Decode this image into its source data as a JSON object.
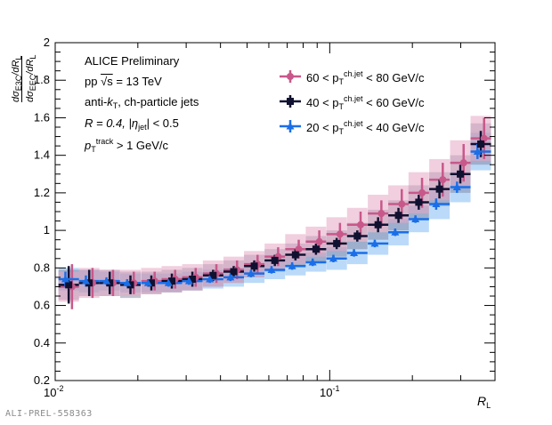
{
  "annotations": {
    "collaboration": "ALICE Preliminary",
    "energy_prefix": "pp ",
    "energy_sqrt": "√s",
    "energy_value": " = 13 TeV",
    "algo_prefix": "anti-",
    "algo_k": "k",
    "algo_sub": "T",
    "algo_suffix": ", ch-particle jets",
    "radius": "R = 0.4, |η",
    "radius_sub": "jet",
    "radius_suffix": "| < 0.5",
    "track_p": "p",
    "track_sub": "T",
    "track_sup": "track",
    "track_suffix": " > 1 GeV/c"
  },
  "watermark": "ALI-PREL-558363",
  "axes": {
    "xlabel": "R",
    "xlabel_sub": "L",
    "ylabel_num": "dσ",
    "ylabel_num_sub": "E3C",
    "ylabel_num_tail": "/dR",
    "ylabel_num_tail_sub": "L",
    "ylabel_den": "dσ",
    "ylabel_den_sub": "EEC",
    "ylabel_den_tail": "/dR",
    "ylabel_den_tail_sub": "L",
    "yticks": [
      "0.2",
      "0.4",
      "0.6",
      "0.8",
      "1",
      "1.2",
      "1.4",
      "1.6",
      "1.8",
      "2"
    ],
    "xtick_major": [
      "10",
      "10"
    ],
    "xtick_major_exp": [
      "-2",
      "-1"
    ]
  },
  "legend": [
    {
      "low": "60 < p",
      "sub": "T",
      "sup": "ch.jet",
      "high": " < 80 GeV/c"
    },
    {
      "low": "40 < p",
      "sub": "T",
      "sup": "ch.jet",
      "high": " < 60 GeV/c"
    },
    {
      "low": "20 < p",
      "sub": "T",
      "sup": "ch.jet",
      "high": " < 40 GeV/c"
    }
  ],
  "colors": {
    "series_60_80": "#c8588a",
    "series_40_60": "#101030",
    "series_20_40": "#1a6ee8",
    "band_60_80": "#e6a8c4",
    "band_40_60": "#7a7a96",
    "band_20_40": "#8ec2f5"
  },
  "chart_data": {
    "type": "scatter",
    "xscale": "log",
    "xlim": [
      0.01,
      0.4
    ],
    "ylim": [
      0.2,
      2.0
    ],
    "xlabel": "R_L",
    "ylabel": "dσ_E3C/dR_L / dσ_EEC/dR_L",
    "x": [
      0.0112,
      0.0133,
      0.0158,
      0.0188,
      0.0224,
      0.0266,
      0.0316,
      0.0376,
      0.0447,
      0.0531,
      0.0631,
      0.075,
      0.0891,
      0.106,
      0.126,
      0.15,
      0.178,
      0.211,
      0.251,
      0.299,
      0.355
    ],
    "series": [
      {
        "name": "60 < pT ch.jet < 80 GeV/c",
        "marker": "circle",
        "values": [
          0.7,
          0.72,
          0.72,
          0.72,
          0.73,
          0.74,
          0.75,
          0.77,
          0.79,
          0.82,
          0.86,
          0.9,
          0.94,
          0.98,
          1.03,
          1.09,
          1.14,
          1.2,
          1.27,
          1.36,
          1.49
        ],
        "stat_err": [
          0.12,
          0.08,
          0.07,
          0.06,
          0.05,
          0.05,
          0.05,
          0.05,
          0.05,
          0.05,
          0.05,
          0.05,
          0.06,
          0.06,
          0.07,
          0.07,
          0.08,
          0.08,
          0.09,
          0.1,
          0.11
        ],
        "sys_err": [
          0.08,
          0.08,
          0.07,
          0.07,
          0.07,
          0.07,
          0.07,
          0.07,
          0.07,
          0.07,
          0.07,
          0.08,
          0.08,
          0.09,
          0.09,
          0.1,
          0.1,
          0.11,
          0.11,
          0.12,
          0.12
        ]
      },
      {
        "name": "40 < pT ch.jet < 60 GeV/c",
        "marker": "square",
        "values": [
          0.71,
          0.72,
          0.72,
          0.71,
          0.72,
          0.73,
          0.74,
          0.76,
          0.78,
          0.81,
          0.84,
          0.87,
          0.9,
          0.93,
          0.97,
          1.03,
          1.08,
          1.15,
          1.22,
          1.3,
          1.46
        ],
        "stat_err": [
          0.1,
          0.07,
          0.06,
          0.05,
          0.04,
          0.04,
          0.04,
          0.03,
          0.03,
          0.03,
          0.03,
          0.03,
          0.03,
          0.03,
          0.03,
          0.04,
          0.04,
          0.04,
          0.05,
          0.05,
          0.07
        ],
        "sys_err": [
          0.08,
          0.07,
          0.07,
          0.07,
          0.06,
          0.06,
          0.06,
          0.06,
          0.06,
          0.06,
          0.06,
          0.06,
          0.07,
          0.07,
          0.07,
          0.08,
          0.08,
          0.09,
          0.09,
          0.1,
          0.11
        ]
      },
      {
        "name": "20 < pT ch.jet < 40 GeV/c",
        "marker": "triangle",
        "values": [
          0.74,
          0.73,
          0.73,
          0.72,
          0.72,
          0.72,
          0.73,
          0.74,
          0.75,
          0.77,
          0.79,
          0.81,
          0.83,
          0.85,
          0.88,
          0.93,
          0.99,
          1.06,
          1.14,
          1.23,
          1.42
        ],
        "stat_err": [
          0.04,
          0.03,
          0.02,
          0.02,
          0.02,
          0.02,
          0.02,
          0.02,
          0.02,
          0.02,
          0.02,
          0.02,
          0.02,
          0.02,
          0.02,
          0.02,
          0.02,
          0.02,
          0.03,
          0.03,
          0.04
        ],
        "sys_err": [
          0.06,
          0.06,
          0.05,
          0.05,
          0.05,
          0.05,
          0.05,
          0.05,
          0.05,
          0.05,
          0.05,
          0.05,
          0.05,
          0.06,
          0.06,
          0.06,
          0.07,
          0.07,
          0.08,
          0.08,
          0.1
        ]
      }
    ]
  }
}
